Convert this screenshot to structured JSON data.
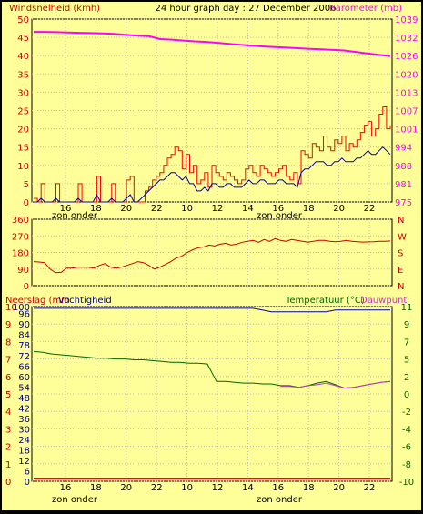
{
  "header": {
    "left": "Windsnelheid (kmh)",
    "center": "24 hour graph day : 27 December 2006",
    "right": "Barometer (mb)"
  },
  "x_axis": {
    "ticks": [
      "16",
      "18",
      "20",
      "22",
      "10",
      "12",
      "14",
      "16",
      "18",
      "20",
      "22"
    ],
    "annotations": [
      "zon onder",
      "zon onder"
    ]
  },
  "colors": {
    "background": "#ffff99",
    "wind_gust": "#ff0000",
    "wind_avg": "#cc6600",
    "barometer": "#ff00ff",
    "direction": "#cc0000",
    "humidity": "#0000aa",
    "temperature": "#006600",
    "dewpoint": "#cc33cc",
    "rain": "#ff0000",
    "grid": "#bbbbbb"
  },
  "panel3": {
    "left_label_1": "Neerslag (mm",
    "left_label_2": "Vochtigheid",
    "right_label_1": "Temperatuur (°C)",
    "right_label_2": "Dauwpunt"
  },
  "chart_data": [
    {
      "type": "line",
      "series": [
        {
          "name": "Windsnelheid (kmh)",
          "axis": "left",
          "values": [
            1,
            0,
            5,
            0,
            0,
            0,
            5,
            0,
            0,
            0,
            0,
            0,
            5,
            0,
            0,
            0,
            0,
            7,
            0,
            0,
            0,
            5,
            0,
            0,
            0,
            6,
            7,
            0,
            0,
            0,
            3,
            4,
            6,
            7,
            8,
            10,
            12,
            13,
            15,
            14,
            9,
            13,
            8,
            10,
            5,
            6,
            8,
            4,
            10,
            8,
            7,
            6,
            8,
            7,
            6,
            5,
            6,
            9,
            10,
            8,
            7,
            10,
            9,
            8,
            7,
            8,
            9,
            10,
            7,
            6,
            8,
            5,
            14,
            13,
            12,
            16,
            15,
            14,
            18,
            15,
            14,
            17,
            16,
            18,
            14,
            16,
            15,
            17,
            19,
            21,
            22,
            18,
            20,
            24,
            26,
            20,
            21
          ]
        },
        {
          "name": "Windsnelheid avg",
          "axis": "left",
          "values": [
            0,
            0,
            1,
            0,
            0,
            0,
            1,
            0,
            0,
            0,
            0,
            0,
            1,
            0,
            0,
            0,
            0,
            2,
            0,
            0,
            0,
            1,
            0,
            0,
            0,
            1,
            2,
            0,
            0,
            1,
            2,
            3,
            4,
            5,
            6,
            6,
            7,
            8,
            8,
            7,
            6,
            7,
            5,
            5,
            3,
            3,
            4,
            3,
            5,
            5,
            4,
            4,
            5,
            5,
            4,
            4,
            4,
            5,
            6,
            5,
            5,
            6,
            6,
            5,
            5,
            5,
            6,
            6,
            5,
            5,
            5,
            4,
            8,
            9,
            9,
            10,
            11,
            11,
            11,
            10,
            10,
            11,
            11,
            12,
            11,
            11,
            11,
            12,
            12,
            13,
            14,
            13,
            13,
            14,
            15,
            14,
            13
          ]
        },
        {
          "name": "Barometer (mb)",
          "axis": "right",
          "values": [
            1034.5,
            1034.5,
            1034.4,
            1034.3,
            1034.2,
            1034.1,
            1034.0,
            1033.8,
            1033.5,
            1033.2,
            1033.0,
            1032.0,
            1031.8,
            1031.5,
            1031.2,
            1031.0,
            1030.7,
            1030.3,
            1030.0,
            1029.7,
            1029.4,
            1029.2,
            1029.0,
            1028.8,
            1028.6,
            1028.4,
            1028.2,
            1028.0,
            1027.5,
            1027.0,
            1026.5,
            1026.0
          ]
        }
      ],
      "left_ticks": [
        0,
        5,
        10,
        15,
        20,
        25,
        30,
        35,
        40,
        45,
        50
      ],
      "right_ticks": [
        975,
        981,
        988,
        994,
        1001,
        1007,
        1013,
        1020,
        1026,
        1032,
        1039
      ],
      "ylim_left": [
        0,
        50
      ],
      "ylim_right": [
        975,
        1039
      ]
    },
    {
      "type": "line",
      "series": [
        {
          "name": "Windrichting",
          "values": [
            130,
            128,
            125,
            90,
            70,
            72,
            95,
            95,
            100,
            100,
            100,
            95,
            110,
            120,
            100,
            95,
            100,
            110,
            120,
            130,
            125,
            110,
            90,
            100,
            115,
            130,
            150,
            160,
            180,
            195,
            205,
            210,
            220,
            215,
            225,
            230,
            220,
            225,
            235,
            240,
            245,
            235,
            250,
            240,
            255,
            245,
            240,
            250,
            245,
            240,
            235,
            240,
            245,
            245,
            240,
            238,
            240,
            245,
            240,
            238,
            236,
            237,
            238,
            240,
            240,
            242
          ]
        }
      ],
      "left_ticks": [
        0,
        90,
        180,
        270,
        360
      ],
      "right_ticks": [
        "N",
        "W",
        "S",
        "E",
        "N"
      ],
      "ylim": [
        0,
        360
      ]
    },
    {
      "type": "line",
      "series": [
        {
          "name": "Vochtigheid",
          "axis": "left",
          "values": [
            99,
            99,
            99,
            99,
            99,
            99,
            99,
            99,
            99,
            99,
            99,
            99,
            99,
            99,
            99,
            99,
            99,
            99,
            99,
            99,
            99,
            99,
            99,
            99,
            99,
            98,
            97,
            97,
            97,
            97,
            97,
            97,
            97,
            98,
            98,
            98,
            98,
            98,
            98,
            98
          ]
        },
        {
          "name": "Temperatuur (°C)",
          "axis": "right",
          "values": [
            5.6,
            5.5,
            5.3,
            5.2,
            5.1,
            5.0,
            4.9,
            4.8,
            4.8,
            4.7,
            4.7,
            4.6,
            4.6,
            4.5,
            4.4,
            4.3,
            4.3,
            4.2,
            4.2,
            4.1,
            2.0,
            2.0,
            1.9,
            1.8,
            1.8,
            1.7,
            1.7,
            1.5,
            1.5,
            1.3,
            1.5,
            1.8,
            2.0,
            1.6,
            1.2,
            1.3,
            1.5,
            1.7,
            1.9,
            2.0
          ]
        },
        {
          "name": "Dauwpunt",
          "axis": "right",
          "values": [
            null,
            null,
            null,
            null,
            null,
            null,
            null,
            null,
            null,
            null,
            null,
            null,
            null,
            null,
            null,
            null,
            null,
            null,
            null,
            null,
            null,
            null,
            null,
            null,
            null,
            null,
            null,
            1.4,
            1.4,
            1.3,
            1.5,
            1.6,
            1.8,
            1.5,
            1.2,
            1.3,
            1.5,
            1.7,
            1.9,
            2.0
          ]
        },
        {
          "name": "Neerslag",
          "axis": "rain",
          "values": [
            0,
            0,
            0,
            0,
            0,
            0,
            0,
            0,
            0,
            0,
            0,
            0,
            0,
            0,
            0,
            0,
            0,
            0,
            0,
            0,
            0,
            0,
            0,
            0,
            0,
            0,
            0,
            0,
            0,
            0,
            0,
            0,
            0,
            0,
            0,
            0,
            0,
            0,
            0,
            0
          ]
        }
      ],
      "left_rain_ticks": [
        0,
        1,
        2,
        3,
        4,
        5,
        6,
        7,
        8,
        9,
        10
      ],
      "left_hum_ticks": [
        0,
        6,
        12,
        18,
        24,
        30,
        36,
        42,
        48,
        54,
        60,
        66,
        72,
        78,
        84,
        90,
        96,
        100
      ],
      "right_ticks": [
        -10,
        -8,
        -6,
        -4,
        -2,
        0,
        2,
        5,
        7,
        9,
        11
      ],
      "ylim_left": [
        0,
        100
      ],
      "ylim_right": [
        -10,
        11
      ]
    }
  ]
}
